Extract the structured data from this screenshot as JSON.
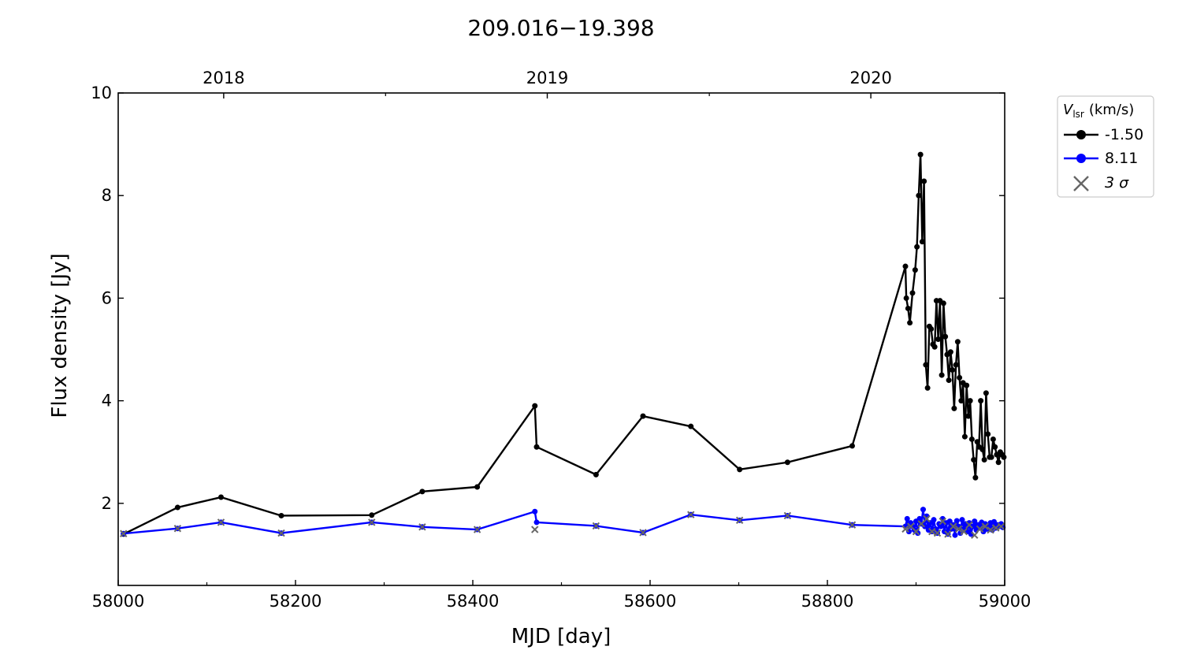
{
  "chart_data": {
    "type": "line",
    "title": "209.016−19.398",
    "xlabel": "MJD [day]",
    "ylabel": "Flux density [Jy]",
    "xlim": [
      58000,
      59000
    ],
    "ylim": [
      0.4,
      10
    ],
    "x_ticks": [
      "58000",
      "58200",
      "58400",
      "58600",
      "58800",
      "59000"
    ],
    "y_ticks": [
      "2",
      "4",
      "6",
      "8",
      "10"
    ],
    "top_axis": {
      "labels": [
        "2018",
        "2019",
        "2020"
      ],
      "mjd": [
        58119,
        58484,
        58849
      ]
    },
    "grid": false,
    "legend": {
      "position": "outside-right-top",
      "title_symbol": "V",
      "title_subscript": "lsr",
      "title_unit": "(km/s)",
      "entries": [
        "-1.50",
        "8.11",
        "3 σ"
      ]
    },
    "colors": {
      "series1": "#000000",
      "series2": "#0000ff",
      "sigma": "#666666"
    },
    "series": [
      {
        "name": "-1.50",
        "x": [
          58006,
          58067,
          58116,
          58184,
          58286,
          58343,
          58405,
          58470,
          58472,
          58539,
          58592,
          58646,
          58701,
          58755,
          58828,
          58888,
          58889,
          58891,
          58893,
          58896,
          58899,
          58901,
          58903,
          58905,
          58907,
          58909,
          58911,
          58913,
          58915,
          58917,
          58919,
          58921,
          58923,
          58925,
          58927,
          58929,
          58931,
          58933,
          58935,
          58937,
          58939,
          58941,
          58943,
          58945,
          58947,
          58949,
          58951,
          58953,
          58955,
          58957,
          58959,
          58961,
          58963,
          58965,
          58967,
          58969,
          58971,
          58973,
          58975,
          58977,
          58979,
          58981,
          58983,
          58985,
          58987,
          58989,
          58991,
          58993,
          58995,
          58997,
          58999
        ],
        "y": [
          1.4,
          1.92,
          2.12,
          1.76,
          1.77,
          2.23,
          2.32,
          3.9,
          3.1,
          2.56,
          3.7,
          3.5,
          2.66,
          2.8,
          3.12,
          6.62,
          6.0,
          5.8,
          5.52,
          6.1,
          6.55,
          7.0,
          8.0,
          8.8,
          7.1,
          8.28,
          4.7,
          4.25,
          5.45,
          5.4,
          5.1,
          5.05,
          5.95,
          5.2,
          5.95,
          4.5,
          5.9,
          5.25,
          4.9,
          4.4,
          4.95,
          4.6,
          3.85,
          4.7,
          5.15,
          4.45,
          4.0,
          4.35,
          3.3,
          4.3,
          3.7,
          4.0,
          3.25,
          2.85,
          2.5,
          3.2,
          3.1,
          4.0,
          3.05,
          2.85,
          4.15,
          3.35,
          2.9,
          2.9,
          3.25,
          3.1,
          2.95,
          2.8,
          3.0,
          2.95,
          2.9
        ]
      },
      {
        "name": "8.11",
        "x": [
          58006,
          58067,
          58116,
          58184,
          58286,
          58343,
          58405,
          58470,
          58472,
          58539,
          58592,
          58646,
          58701,
          58755,
          58828,
          58888,
          58890,
          58892,
          58894,
          58896,
          58898,
          58900,
          58902,
          58904,
          58906,
          58908,
          58910,
          58912,
          58914,
          58916,
          58918,
          58920,
          58922,
          58924,
          58926,
          58928,
          58930,
          58932,
          58934,
          58936,
          58938,
          58940,
          58942,
          58944,
          58946,
          58948,
          58950,
          58952,
          58954,
          58956,
          58958,
          58960,
          58962,
          58964,
          58966,
          58968,
          58970,
          58972,
          58974,
          58976,
          58978,
          58980,
          58982,
          58984,
          58986,
          58988,
          58990,
          58992,
          58994,
          58996,
          58998
        ],
        "y": [
          1.41,
          1.51,
          1.63,
          1.42,
          1.63,
          1.54,
          1.49,
          1.84,
          1.63,
          1.56,
          1.43,
          1.78,
          1.67,
          1.76,
          1.58,
          1.55,
          1.7,
          1.45,
          1.62,
          1.55,
          1.48,
          1.65,
          1.42,
          1.7,
          1.6,
          1.88,
          1.55,
          1.75,
          1.48,
          1.62,
          1.45,
          1.68,
          1.5,
          1.42,
          1.6,
          1.55,
          1.7,
          1.45,
          1.62,
          1.4,
          1.65,
          1.5,
          1.58,
          1.38,
          1.66,
          1.55,
          1.42,
          1.68,
          1.5,
          1.6,
          1.45,
          1.62,
          1.4,
          1.55,
          1.65,
          1.48,
          1.58,
          1.52,
          1.63,
          1.45,
          1.6,
          1.5,
          1.56,
          1.62,
          1.48,
          1.64,
          1.52,
          1.58,
          1.55,
          1.6,
          1.53
        ]
      }
    ],
    "sigma_markers": {
      "name": "3 σ",
      "x": [
        58006,
        58067,
        58116,
        58184,
        58286,
        58343,
        58405,
        58470,
        58539,
        58592,
        58646,
        58701,
        58755,
        58828,
        58888,
        58894,
        58900,
        58906,
        58912,
        58918,
        58924,
        58930,
        58936,
        58942,
        58948,
        58954,
        58960,
        58966,
        58972,
        58978,
        58984,
        58990,
        58996
      ],
      "y": [
        1.41,
        1.51,
        1.63,
        1.42,
        1.63,
        1.54,
        1.49,
        1.49,
        1.56,
        1.43,
        1.78,
        1.67,
        1.76,
        1.58,
        1.5,
        1.55,
        1.45,
        1.6,
        1.7,
        1.45,
        1.42,
        1.65,
        1.4,
        1.55,
        1.5,
        1.45,
        1.58,
        1.38,
        1.5,
        1.55,
        1.48,
        1.52,
        1.55
      ]
    }
  }
}
